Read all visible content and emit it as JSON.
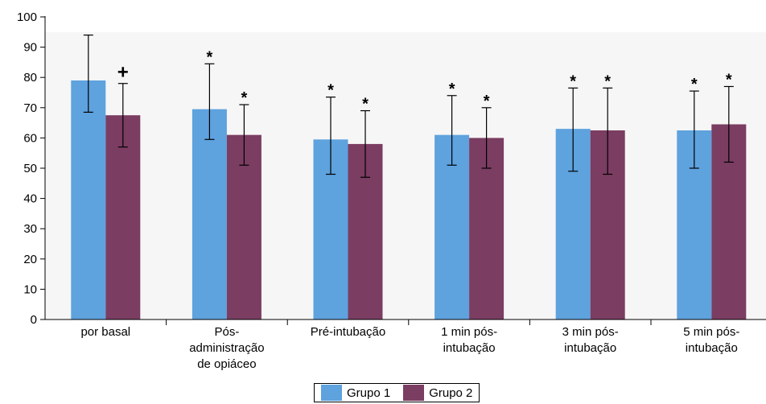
{
  "chart_data": {
    "type": "bar",
    "categories": [
      [
        "por basal"
      ],
      [
        "Pós-",
        "administração",
        "de opiáceo"
      ],
      [
        "Pré-intubação"
      ],
      [
        "1 min pós-",
        "intubação"
      ],
      [
        "3 min pós-",
        "intubação"
      ],
      [
        "5 min pós-",
        "intubação"
      ]
    ],
    "series": [
      {
        "name": "Grupo 1",
        "color": "#5ea2de",
        "values": [
          79,
          69.5,
          59.5,
          61,
          63,
          62.5
        ],
        "error_upper": [
          94,
          84.5,
          73.5,
          74,
          76.5,
          75.5
        ],
        "error_lower": [
          68.5,
          59.5,
          48,
          51,
          49,
          50
        ],
        "markers": [
          "",
          "*",
          "*",
          "*",
          "*",
          "*"
        ]
      },
      {
        "name": "Grupo 2",
        "color": "#7b3d62",
        "values": [
          67.5,
          61,
          58,
          60,
          62.5,
          64.5
        ],
        "error_upper": [
          78,
          71,
          69,
          70,
          76.5,
          77
        ],
        "error_lower": [
          57,
          51,
          47,
          50,
          48,
          52
        ],
        "markers": [
          "+",
          "*",
          "*",
          "*",
          "*",
          "*"
        ]
      }
    ],
    "yticks": [
      0,
      10,
      20,
      30,
      40,
      50,
      60,
      70,
      80,
      90,
      100
    ],
    "ylim": [
      0,
      100
    ],
    "grid": false,
    "legend": "bottom-center",
    "title": "",
    "xlabel": "",
    "ylabel": ""
  }
}
